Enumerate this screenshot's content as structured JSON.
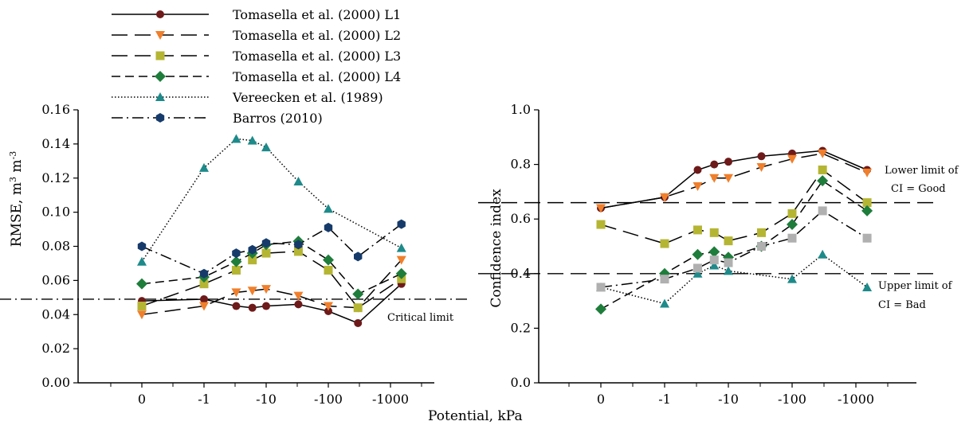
{
  "colors": {
    "L1": "#6e1a1a",
    "L2": "#f07f2c",
    "L3": "#b5b534",
    "L4": "#1e7d3b",
    "Vereecken": "#1e8a8a",
    "Barros": "#163b6b",
    "gray": "#b0b0b0"
  },
  "legend": [
    {
      "label": "Tomasella et al. (2000) L1",
      "marker": "circle",
      "dash": "solid",
      "color_key": "L1"
    },
    {
      "label": "Tomasella et al. (2000) L2",
      "marker": "triangle-down",
      "dash": "longdash",
      "color_key": "L2"
    },
    {
      "label": "Tomasella et al. (2000) L3",
      "marker": "square",
      "dash": "longdash",
      "color_key": "L3"
    },
    {
      "label": "Tomasella et al. (2000) L4",
      "marker": "diamond",
      "dash": "dash",
      "color_key": "L4"
    },
    {
      "label": "Vereecken et al. (1989)",
      "marker": "triangle-up",
      "dash": "dotted",
      "color_key": "Vereecken"
    },
    {
      "label": "Barros (2010)",
      "marker": "hexagon",
      "dash": "dashdot",
      "color_key": "Barros"
    }
  ],
  "shared_xlabel": "Potential, kPa",
  "chart_data": [
    {
      "type": "line",
      "ylabel": "RMSE, m",
      "ylabel_sup1": "3",
      "ylabel_mid": " m",
      "ylabel_sup2": "-3",
      "ylim": [
        0.0,
        0.16
      ],
      "yticks": [
        "0.00",
        "0.02",
        "0.04",
        "0.06",
        "0.08",
        "0.10",
        "0.12",
        "0.14",
        "0.16"
      ],
      "x_scale": "log-kPa (0 plotted at position 0)",
      "xlim": [
        -1,
        4.6
      ],
      "xticks": [
        {
          "pos": 0,
          "label": "0"
        },
        {
          "pos": 1,
          "label": "-1"
        },
        {
          "pos": 2,
          "label": "-10"
        },
        {
          "pos": 3,
          "label": "-100"
        },
        {
          "pos": 4,
          "label": "-1000"
        }
      ],
      "x_potential_kpa": [
        0,
        -1,
        -3.3,
        -6,
        -10,
        -33,
        -100,
        -300,
        -1500
      ],
      "series": [
        {
          "name": "Tomasella et al. (2000) L1",
          "values": [
            0.048,
            0.049,
            0.045,
            0.044,
            0.045,
            0.046,
            0.042,
            0.035,
            0.058
          ]
        },
        {
          "name": "Tomasella et al. (2000) L2",
          "values": [
            0.04,
            0.045,
            0.053,
            0.054,
            0.055,
            0.051,
            0.045,
            0.044,
            0.072
          ]
        },
        {
          "name": "Tomasella et al. (2000) L3",
          "values": [
            0.045,
            0.058,
            0.066,
            0.072,
            0.076,
            0.077,
            0.066,
            0.044,
            0.061
          ]
        },
        {
          "name": "Tomasella et al. (2000) L4",
          "values": [
            0.058,
            0.062,
            0.071,
            0.076,
            0.081,
            0.083,
            0.072,
            0.052,
            0.064
          ]
        },
        {
          "name": "Vereecken et al. (1989)",
          "values": [
            0.071,
            0.126,
            0.143,
            0.142,
            0.138,
            0.118,
            0.102,
            null,
            0.079
          ]
        },
        {
          "name": "Barros (2010)",
          "values": [
            0.08,
            0.064,
            0.076,
            0.078,
            0.082,
            0.081,
            0.091,
            0.074,
            0.093
          ]
        }
      ],
      "reference_lines": [
        {
          "y": 0.049,
          "style": "dashdot",
          "label": "Critical limit"
        }
      ]
    },
    {
      "type": "line",
      "ylabel": "Confidence index",
      "ylim": [
        0.0,
        1.0
      ],
      "yticks": [
        "0.0",
        "0.2",
        "0.4",
        "0.6",
        "0.8",
        "1.0"
      ],
      "x_scale": "log-kPa (0 plotted at position 0)",
      "xlim": [
        -1,
        4.9
      ],
      "xticks": [
        {
          "pos": 0,
          "label": "0"
        },
        {
          "pos": 1,
          "label": "-1"
        },
        {
          "pos": 2,
          "label": "-10"
        },
        {
          "pos": 3,
          "label": "-100"
        },
        {
          "pos": 4,
          "label": "-1000"
        }
      ],
      "x_potential_kpa": [
        0,
        -1,
        -3.3,
        -6,
        -10,
        -33,
        -100,
        -300,
        -1500
      ],
      "series": [
        {
          "name": "Tomasella et al. (2000) L1",
          "values": [
            0.64,
            0.68,
            0.78,
            0.8,
            0.81,
            0.83,
            0.84,
            0.85,
            0.78
          ]
        },
        {
          "name": "Tomasella et al. (2000) L2",
          "values": [
            0.64,
            0.68,
            0.72,
            0.75,
            0.75,
            0.79,
            0.82,
            0.84,
            0.77
          ]
        },
        {
          "name": "Tomasella et al. (2000) L3",
          "values": [
            0.58,
            0.51,
            0.56,
            0.55,
            0.52,
            0.55,
            0.62,
            0.78,
            0.66
          ]
        },
        {
          "name": "Tomasella et al. (2000) L4",
          "values": [
            0.27,
            0.4,
            0.47,
            0.48,
            0.46,
            0.5,
            0.58,
            0.74,
            0.63
          ]
        },
        {
          "name": "Vereecken et al. (1989)",
          "values": [
            0.35,
            0.29,
            0.4,
            0.43,
            0.41,
            null,
            0.38,
            0.47,
            0.35
          ]
        },
        {
          "name": "Barros (2010)",
          "values": [
            0.35,
            0.38,
            0.42,
            0.45,
            0.44,
            0.5,
            0.53,
            0.63,
            0.53
          ]
        }
      ],
      "reference_lines": [
        {
          "y": 0.66,
          "style": "longdash",
          "label_line1": "Lower limit of",
          "label_line2": "CI = Good"
        },
        {
          "y": 0.4,
          "style": "longdash",
          "label_line1": "Upper limit of",
          "label_line2": "CI = Bad"
        }
      ]
    }
  ]
}
